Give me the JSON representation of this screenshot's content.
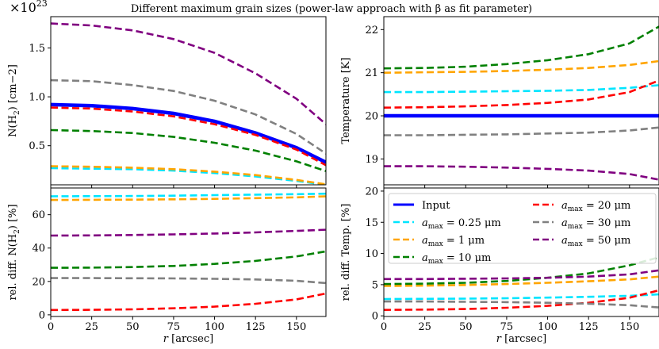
{
  "figure": {
    "title": "Different maximum grain sizes (power-law approach with β as fit parameter)",
    "multiplier_base": "×10",
    "multiplier_exp": "23",
    "xlabel_r": "r",
    "xlabel_unit": "[arcsec]",
    "legend": [
      {
        "name": "Input",
        "color": "#0000ff",
        "style": "solid"
      },
      {
        "name": "amax = 0.25 μm",
        "sub": "max",
        "pre": "a",
        "post": " = 0.25 μm",
        "color": "#00e5ff",
        "style": "dashed"
      },
      {
        "name": "amax = 1 μm",
        "sub": "max",
        "pre": "a",
        "post": " = 1 μm",
        "color": "#ffa500",
        "style": "dashed"
      },
      {
        "name": "amax = 10 μm",
        "sub": "max",
        "pre": "a",
        "post": " = 10 μm",
        "color": "#008000",
        "style": "dashed"
      },
      {
        "name": "amax = 20 μm",
        "sub": "max",
        "pre": "a",
        "post": " = 20 μm",
        "color": "#ff0000",
        "style": "dashed"
      },
      {
        "name": "amax = 30 μm",
        "sub": "max",
        "pre": "a",
        "post": " = 30 μm",
        "color": "#808080",
        "style": "dashed"
      },
      {
        "name": "amax = 50 μm",
        "sub": "max",
        "pre": "a",
        "post": " = 50 μm",
        "color": "#800080",
        "style": "dashed"
      }
    ]
  },
  "chart_data": [
    {
      "type": "line",
      "panel": "top-left",
      "ylabel": "N(H2) [cm−2]",
      "xlim": [
        0,
        168
      ],
      "ylim": [
        0.1,
        1.82
      ],
      "xticks": [
        0,
        25,
        50,
        75,
        100,
        125,
        150
      ],
      "yticks": [
        0.5,
        1.0,
        1.5
      ],
      "ytick_labels": [
        "0.5",
        "1.0",
        "1.5"
      ],
      "x": [
        0,
        25,
        50,
        75,
        100,
        125,
        150,
        168
      ],
      "series": [
        {
          "name": "Input",
          "values": [
            0.92,
            0.91,
            0.88,
            0.83,
            0.75,
            0.63,
            0.48,
            0.33
          ]
        },
        {
          "name": "amax = 0.25 μm",
          "values": [
            0.27,
            0.265,
            0.26,
            0.245,
            0.22,
            0.185,
            0.14,
            0.1
          ]
        },
        {
          "name": "amax = 1 μm",
          "values": [
            0.29,
            0.285,
            0.275,
            0.26,
            0.235,
            0.2,
            0.15,
            0.105
          ]
        },
        {
          "name": "amax = 10 μm",
          "values": [
            0.66,
            0.65,
            0.63,
            0.59,
            0.53,
            0.45,
            0.34,
            0.24
          ]
        },
        {
          "name": "amax = 20 μm",
          "values": [
            0.89,
            0.88,
            0.85,
            0.8,
            0.72,
            0.61,
            0.46,
            0.3
          ]
        },
        {
          "name": "amax = 30 μm",
          "values": [
            1.17,
            1.16,
            1.12,
            1.06,
            0.96,
            0.82,
            0.62,
            0.42
          ]
        },
        {
          "name": "amax = 50 μm",
          "values": [
            1.75,
            1.73,
            1.68,
            1.59,
            1.45,
            1.24,
            0.98,
            0.72
          ]
        }
      ]
    },
    {
      "type": "line",
      "panel": "top-right",
      "ylabel": "Temperature [K]",
      "xlim": [
        0,
        168
      ],
      "ylim": [
        18.4,
        22.3
      ],
      "xticks": [
        0,
        25,
        50,
        75,
        100,
        125,
        150
      ],
      "yticks": [
        19,
        20,
        21,
        22
      ],
      "ytick_labels": [
        "19",
        "20",
        "21",
        "22"
      ],
      "x": [
        0,
        25,
        50,
        75,
        100,
        125,
        150,
        168
      ],
      "series": [
        {
          "name": "Input",
          "values": [
            20.0,
            20.0,
            20.0,
            20.0,
            20.0,
            20.0,
            20.0,
            20.0
          ]
        },
        {
          "name": "amax = 0.25 μm",
          "values": [
            20.55,
            20.55,
            20.56,
            20.57,
            20.58,
            20.6,
            20.65,
            20.71
          ]
        },
        {
          "name": "amax = 1 μm",
          "values": [
            21.0,
            21.01,
            21.02,
            21.04,
            21.07,
            21.11,
            21.18,
            21.27
          ]
        },
        {
          "name": "amax = 10 μm",
          "values": [
            21.1,
            21.11,
            21.14,
            21.2,
            21.29,
            21.43,
            21.68,
            22.07
          ]
        },
        {
          "name": "amax = 20 μm",
          "values": [
            20.19,
            20.2,
            20.22,
            20.25,
            20.3,
            20.38,
            20.55,
            20.82
          ]
        },
        {
          "name": "amax = 30 μm",
          "values": [
            19.55,
            19.55,
            19.56,
            19.57,
            19.59,
            19.61,
            19.66,
            19.73
          ]
        },
        {
          "name": "amax = 50 μm",
          "values": [
            18.83,
            18.83,
            18.82,
            18.8,
            18.77,
            18.73,
            18.65,
            18.52
          ]
        }
      ]
    },
    {
      "type": "line",
      "panel": "bottom-left",
      "ylabel": "rel. diff. N(H2) [%]",
      "xlabel": "r [arcsec]",
      "xlim": [
        0,
        168
      ],
      "ylim": [
        -1,
        76
      ],
      "xticks": [
        0,
        25,
        50,
        75,
        100,
        125,
        150
      ],
      "yticks": [
        0,
        20,
        40,
        60
      ],
      "ytick_labels": [
        "0",
        "20",
        "40",
        "60"
      ],
      "x": [
        0,
        25,
        50,
        75,
        100,
        125,
        150,
        168
      ],
      "series": [
        {
          "name": "amax = 0.25 μm",
          "values": [
            71.0,
            71.1,
            71.2,
            71.4,
            71.7,
            72.0,
            72.3,
            72.6
          ]
        },
        {
          "name": "amax = 1 μm",
          "values": [
            68.8,
            68.9,
            69.0,
            69.2,
            69.5,
            69.9,
            70.4,
            71.0
          ]
        },
        {
          "name": "amax = 10 μm",
          "values": [
            28.2,
            28.3,
            28.6,
            29.3,
            30.5,
            32.3,
            35.0,
            38.0
          ]
        },
        {
          "name": "amax = 20 μm",
          "values": [
            2.9,
            3.0,
            3.3,
            3.9,
            4.9,
            6.6,
            9.2,
            12.8
          ]
        },
        {
          "name": "amax = 30 μm",
          "values": [
            22.0,
            22.0,
            21.9,
            21.8,
            21.6,
            21.2,
            20.4,
            19.0
          ]
        },
        {
          "name": "amax = 50 μm",
          "values": [
            47.5,
            47.6,
            47.8,
            48.2,
            48.7,
            49.4,
            50.3,
            51.0
          ]
        }
      ]
    },
    {
      "type": "line",
      "panel": "bottom-right",
      "ylabel": "rel. diff. Temp. [%]",
      "xlabel": "r [arcsec]",
      "xlim": [
        0,
        168
      ],
      "ylim": [
        -0.1,
        20.5
      ],
      "xticks": [
        0,
        25,
        50,
        75,
        100,
        125,
        150
      ],
      "yticks": [
        0,
        5,
        10,
        15,
        20
      ],
      "ytick_labels": [
        "0",
        "5",
        "10",
        "15",
        "20"
      ],
      "x": [
        0,
        25,
        50,
        75,
        100,
        125,
        150,
        168
      ],
      "series": [
        {
          "name": "amax = 0.25 μm",
          "values": [
            2.7,
            2.72,
            2.76,
            2.83,
            2.93,
            3.05,
            3.22,
            3.45
          ]
        },
        {
          "name": "amax = 1 μm",
          "values": [
            4.8,
            4.85,
            4.95,
            5.1,
            5.3,
            5.55,
            5.85,
            6.3
          ]
        },
        {
          "name": "amax = 10 μm",
          "values": [
            5.1,
            5.17,
            5.3,
            5.6,
            6.1,
            6.8,
            8.1,
            9.4
          ]
        },
        {
          "name": "amax = 20 μm",
          "values": [
            0.95,
            1.0,
            1.1,
            1.3,
            1.6,
            2.1,
            2.9,
            4.1
          ]
        },
        {
          "name": "amax = 30 μm",
          "values": [
            2.3,
            2.3,
            2.25,
            2.2,
            2.1,
            1.95,
            1.7,
            1.35
          ]
        },
        {
          "name": "amax = 50 μm",
          "values": [
            5.9,
            5.9,
            5.95,
            6.0,
            6.1,
            6.3,
            6.65,
            7.3
          ]
        }
      ]
    }
  ]
}
